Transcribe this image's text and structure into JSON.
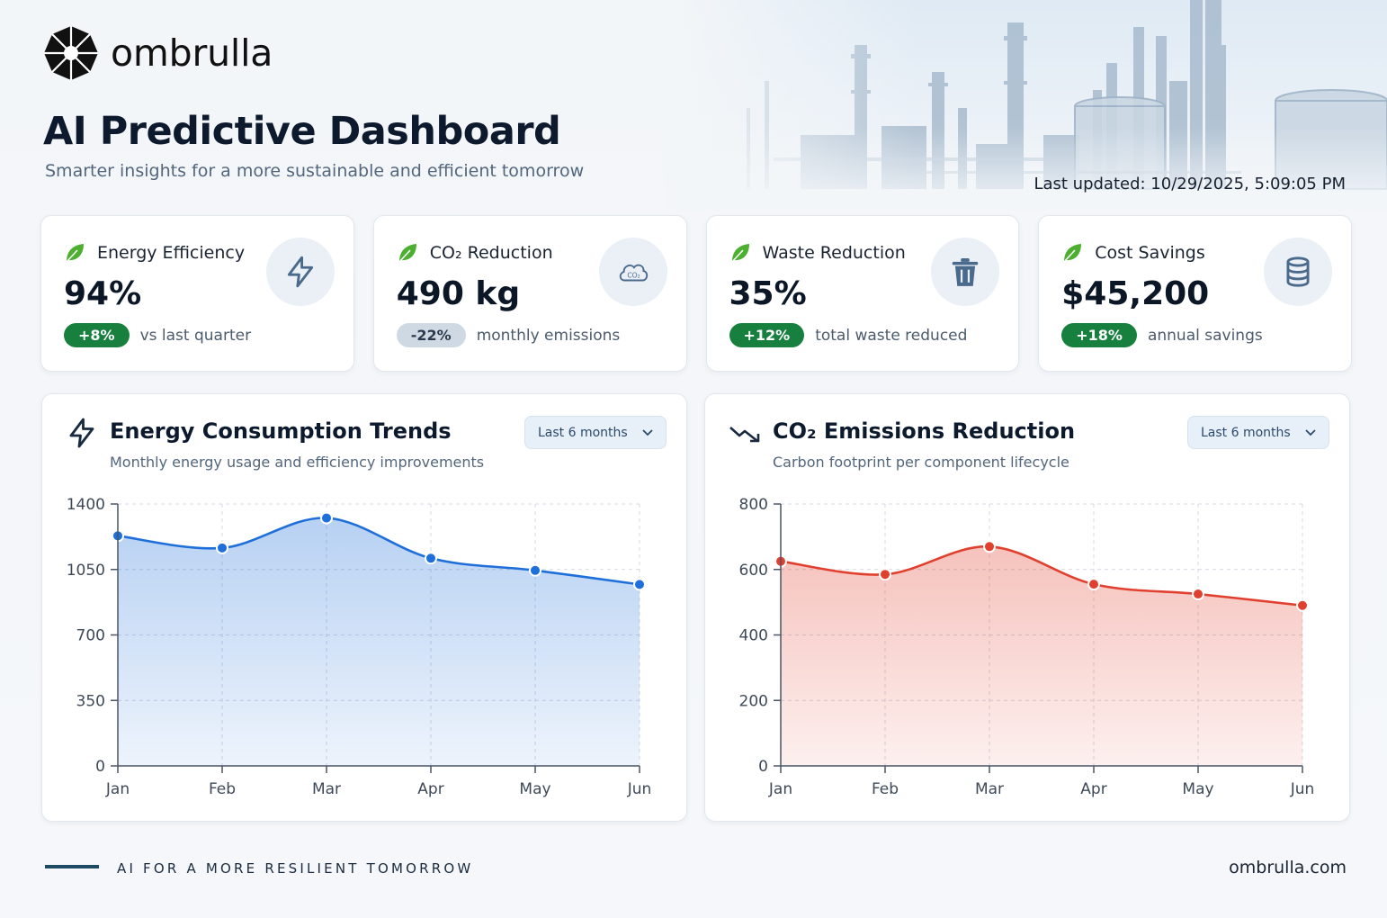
{
  "brand": {
    "name": "ombrulla"
  },
  "header": {
    "title": "AI Predictive Dashboard",
    "subtitle": "Smarter insights for a more sustainable and efficient tomorrow",
    "last_updated": "Last updated: 10/29/2025, 5:09:05 PM"
  },
  "cards": [
    {
      "title": "Energy Efficiency",
      "value": "94%",
      "delta": "+8%",
      "delta_style": "positive",
      "caption": "vs last quarter",
      "icon": "lightning-icon"
    },
    {
      "title": "CO₂ Reduction",
      "value": "490 kg",
      "delta": "-22%",
      "delta_style": "neutral",
      "caption": "monthly emissions",
      "icon": "co2-cloud-icon"
    },
    {
      "title": "Waste Reduction",
      "value": "35%",
      "delta": "+12%",
      "delta_style": "positive",
      "caption": "total waste reduced",
      "icon": "trash-icon"
    },
    {
      "title": "Cost Savings",
      "value": "$45,200",
      "delta": "+18%",
      "delta_style": "positive",
      "caption": "annual savings",
      "icon": "coins-stack-icon"
    }
  ],
  "panels": {
    "energy": {
      "title": "Energy Consumption Trends",
      "subtitle": "Monthly energy usage and efficiency improvements",
      "range": "Last 6 months",
      "icon": "lightning-icon"
    },
    "co2": {
      "title": "CO₂ Emissions Reduction",
      "subtitle": "Carbon footprint per component lifecycle",
      "range": "Last 6 months",
      "icon": "trending-down-icon"
    }
  },
  "chart_data": [
    {
      "type": "area",
      "categories": [
        "Jan",
        "Feb",
        "Mar",
        "Apr",
        "May",
        "Jun"
      ],
      "series": [
        {
          "values": [
            1230,
            1165,
            1325,
            1110,
            1045,
            970
          ]
        }
      ],
      "yticks": [
        0,
        350,
        700,
        1050,
        1400
      ],
      "ylim": [
        0,
        1400
      ],
      "grid": true,
      "color": "#1e6fd9"
    },
    {
      "type": "area",
      "categories": [
        "Jan",
        "Feb",
        "Mar",
        "Apr",
        "May",
        "Jun"
      ],
      "series": [
        {
          "values": [
            625,
            585,
            670,
            555,
            525,
            490
          ]
        }
      ],
      "yticks": [
        0,
        200,
        400,
        600,
        800
      ],
      "ylim": [
        0,
        800
      ],
      "grid": true,
      "color": "#e2402e"
    }
  ],
  "footer": {
    "tagline": "AI FOR A MORE RESILIENT TOMORROW",
    "url": "ombrulla.com"
  },
  "colors": {
    "positive": "#17803f",
    "leaf": "#4caf2f",
    "energy_line": "#1e6fd9",
    "co2_line": "#e2402e",
    "title": "#0d1a2e"
  }
}
